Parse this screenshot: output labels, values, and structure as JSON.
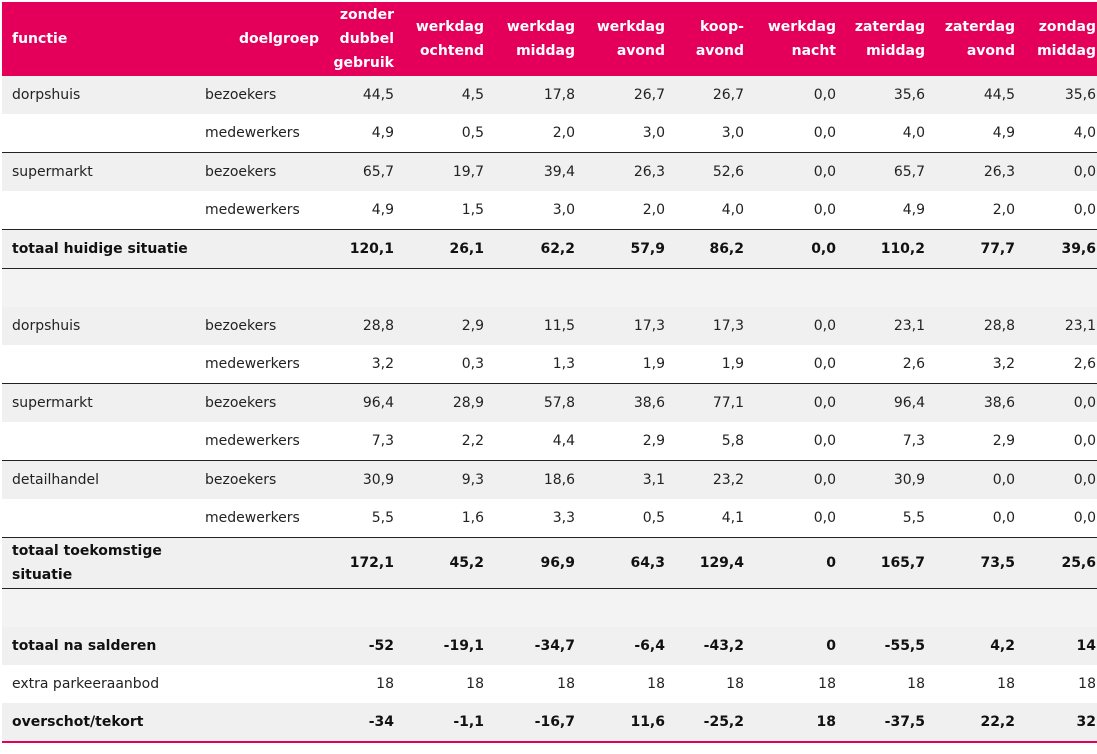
{
  "header": {
    "functie": "functie",
    "doelgroep": "doelgroep",
    "periods": [
      {
        "line1": "zonder",
        "line2": "dubbel",
        "line3": "gebruik"
      },
      {
        "line1": "",
        "line2": "werkdag",
        "line3": "ochtend"
      },
      {
        "line1": "",
        "line2": "werkdag",
        "line3": "middag"
      },
      {
        "line1": "",
        "line2": "werkdag",
        "line3": "avond"
      },
      {
        "line1": "",
        "line2": "koop-",
        "line3": "avond"
      },
      {
        "line1": "",
        "line2": "werkdag",
        "line3": "nacht"
      },
      {
        "line1": "",
        "line2": "zaterdag",
        "line3": "middag"
      },
      {
        "line1": "",
        "line2": "zaterdag",
        "line3": "avond"
      },
      {
        "line1": "",
        "line2": "zondag",
        "line3": "middag"
      }
    ]
  },
  "rows": [
    {
      "functie": "dorpshuis",
      "doelgroep": "bezoekers",
      "values": [
        "44,5",
        "4,5",
        "17,8",
        "26,7",
        "26,7",
        "0,0",
        "35,6",
        "44,5",
        "35,6"
      ]
    },
    {
      "functie": "",
      "doelgroep": "medewerkers",
      "values": [
        "4,9",
        "0,5",
        "2,0",
        "3,0",
        "3,0",
        "0,0",
        "4,0",
        "4,9",
        "4,0"
      ]
    },
    {
      "functie": "supermarkt",
      "doelgroep": "bezoekers",
      "values": [
        "65,7",
        "19,7",
        "39,4",
        "26,3",
        "52,6",
        "0,0",
        "65,7",
        "26,3",
        "0,0"
      ]
    },
    {
      "functie": "",
      "doelgroep": "medewerkers",
      "values": [
        "4,9",
        "1,5",
        "3,0",
        "2,0",
        "4,0",
        "0,0",
        "4,9",
        "2,0",
        "0,0"
      ]
    },
    {
      "functie": "totaal huidige situatie",
      "doelgroep": "",
      "values": [
        "120,1",
        "26,1",
        "62,2",
        "57,9",
        "86,2",
        "0,0",
        "110,2",
        "77,7",
        "39,6"
      ]
    },
    {
      "functie": "",
      "doelgroep": "",
      "values": [
        "",
        "",
        "",
        "",
        "",
        "",
        "",
        "",
        ""
      ]
    },
    {
      "functie": "dorpshuis",
      "doelgroep": "bezoekers",
      "values": [
        "28,8",
        "2,9",
        "11,5",
        "17,3",
        "17,3",
        "0,0",
        "23,1",
        "28,8",
        "23,1"
      ]
    },
    {
      "functie": "",
      "doelgroep": "medewerkers",
      "values": [
        "3,2",
        "0,3",
        "1,3",
        "1,9",
        "1,9",
        "0,0",
        "2,6",
        "3,2",
        "2,6"
      ]
    },
    {
      "functie": "supermarkt",
      "doelgroep": "bezoekers",
      "values": [
        "96,4",
        "28,9",
        "57,8",
        "38,6",
        "77,1",
        "0,0",
        "96,4",
        "38,6",
        "0,0"
      ]
    },
    {
      "functie": "",
      "doelgroep": "medewerkers",
      "values": [
        "7,3",
        "2,2",
        "4,4",
        "2,9",
        "5,8",
        "0,0",
        "7,3",
        "2,9",
        "0,0"
      ]
    },
    {
      "functie": "detailhandel",
      "doelgroep": "bezoekers",
      "values": [
        "30,9",
        "9,3",
        "18,6",
        "3,1",
        "23,2",
        "0,0",
        "30,9",
        "0,0",
        "0,0"
      ]
    },
    {
      "functie": "",
      "doelgroep": "medewerkers",
      "values": [
        "5,5",
        "1,6",
        "3,3",
        "0,5",
        "4,1",
        "0,0",
        "5,5",
        "0,0",
        "0,0"
      ]
    },
    {
      "functie": "totaal toekomstige situatie",
      "doelgroep": "",
      "values": [
        "172,1",
        "45,2",
        "96,9",
        "64,3",
        "129,4",
        "0",
        "165,7",
        "73,5",
        "25,6"
      ]
    },
    {
      "functie": "",
      "doelgroep": "",
      "values": [
        "",
        "",
        "",
        "",
        "",
        "",
        "",
        "",
        ""
      ]
    },
    {
      "functie": "totaal na salderen",
      "doelgroep": "",
      "values": [
        "-52",
        "-19,1",
        "-34,7",
        "-6,4",
        "-43,2",
        "0",
        "-55,5",
        "4,2",
        "14"
      ]
    },
    {
      "functie": "extra parkeeraanbod",
      "doelgroep": "",
      "values": [
        "18",
        "18",
        "18",
        "18",
        "18",
        "18",
        "18",
        "18",
        "18"
      ]
    },
    {
      "functie": "overschot/tekort",
      "doelgroep": "",
      "values": [
        "-34",
        "-1,1",
        "-16,7",
        "11,6",
        "-25,2",
        "18",
        "-37,5",
        "22,2",
        "32"
      ]
    }
  ]
}
